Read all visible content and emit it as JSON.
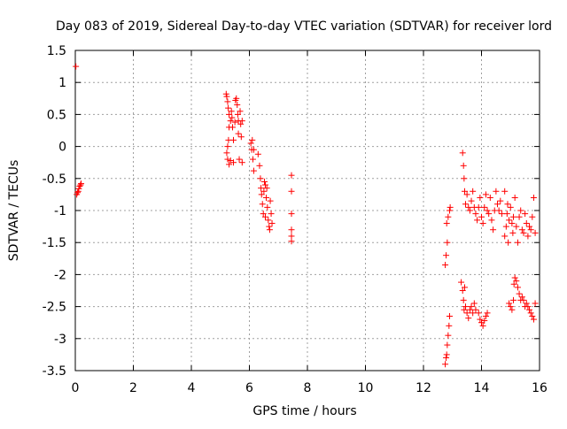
{
  "chart_data": {
    "type": "scatter",
    "title": "Day 083 of 2019, Sidereal Day-to-day VTEC variation (SDTVAR) for receiver lord",
    "xlabel": "GPS time / hours",
    "ylabel": "SDTVAR / TECUs",
    "xlim": [
      0,
      16
    ],
    "ylim": [
      -3.5,
      1.5
    ],
    "xticks": [
      0,
      2,
      4,
      6,
      8,
      10,
      12,
      14,
      16
    ],
    "yticks": [
      1.5,
      1,
      0.5,
      0,
      -0.5,
      -1,
      -1.5,
      -2,
      -2.5,
      -3,
      -3.5
    ],
    "xtick_labels": [
      "0",
      "2",
      "4",
      "6",
      "8",
      "10",
      "12",
      "14",
      "16"
    ],
    "ytick_labels": [
      "1.5",
      "1",
      "0.5",
      "0",
      "-0.5",
      "-1",
      "-1.5",
      "-2",
      "-2.5",
      "-3",
      "-3.5"
    ],
    "grid": true,
    "marker": "+",
    "series": [
      {
        "name": "SDTVAR",
        "color": "#ff0000",
        "points": [
          [
            0.02,
            1.25
          ],
          [
            0.05,
            -0.75
          ],
          [
            0.08,
            -0.72
          ],
          [
            0.1,
            -0.7
          ],
          [
            0.12,
            -0.66
          ],
          [
            0.15,
            -0.62
          ],
          [
            0.18,
            -0.6
          ],
          [
            0.2,
            -0.58
          ],
          [
            5.2,
            0.82
          ],
          [
            5.22,
            0.78
          ],
          [
            5.25,
            0.7
          ],
          [
            5.27,
            0.6
          ],
          [
            5.3,
            0.5
          ],
          [
            5.3,
            0.3
          ],
          [
            5.28,
            0.1
          ],
          [
            5.25,
            0.0
          ],
          [
            5.22,
            -0.1
          ],
          [
            5.25,
            -0.2
          ],
          [
            5.3,
            -0.28
          ],
          [
            5.35,
            -0.22
          ],
          [
            5.35,
            0.4
          ],
          [
            5.38,
            0.55
          ],
          [
            5.4,
            0.45
          ],
          [
            5.42,
            0.3
          ],
          [
            5.45,
            0.1
          ],
          [
            5.45,
            -0.25
          ],
          [
            5.5,
            0.38
          ],
          [
            5.52,
            0.72
          ],
          [
            5.55,
            0.75
          ],
          [
            5.58,
            0.65
          ],
          [
            5.6,
            0.5
          ],
          [
            5.62,
            0.4
          ],
          [
            5.62,
            0.2
          ],
          [
            5.65,
            -0.2
          ],
          [
            5.68,
            0.55
          ],
          [
            5.7,
            0.35
          ],
          [
            5.72,
            0.15
          ],
          [
            5.75,
            -0.25
          ],
          [
            5.75,
            0.4
          ],
          [
            6.05,
            0.05
          ],
          [
            6.08,
            -0.05
          ],
          [
            6.1,
            0.1
          ],
          [
            6.12,
            -0.2
          ],
          [
            6.15,
            -0.38
          ],
          [
            6.15,
            -0.05
          ],
          [
            6.3,
            -0.12
          ],
          [
            6.35,
            -0.3
          ],
          [
            6.38,
            -0.5
          ],
          [
            6.4,
            -0.65
          ],
          [
            6.42,
            -0.75
          ],
          [
            6.45,
            -0.9
          ],
          [
            6.48,
            -1.05
          ],
          [
            6.5,
            -0.7
          ],
          [
            6.52,
            -0.55
          ],
          [
            6.55,
            -0.6
          ],
          [
            6.55,
            -1.1
          ],
          [
            6.58,
            -0.8
          ],
          [
            6.6,
            -0.65
          ],
          [
            6.62,
            -0.95
          ],
          [
            6.65,
            -1.15
          ],
          [
            6.68,
            -1.25
          ],
          [
            6.7,
            -1.3
          ],
          [
            6.72,
            -0.85
          ],
          [
            6.75,
            -1.05
          ],
          [
            6.78,
            -1.2
          ],
          [
            7.45,
            -0.45
          ],
          [
            7.45,
            -0.7
          ],
          [
            7.45,
            -1.05
          ],
          [
            7.45,
            -1.3
          ],
          [
            7.45,
            -1.4
          ],
          [
            7.45,
            -1.48
          ],
          [
            12.75,
            -3.4
          ],
          [
            12.75,
            -1.85
          ],
          [
            12.78,
            -3.3
          ],
          [
            12.78,
            -1.7
          ],
          [
            12.8,
            -3.25
          ],
          [
            12.8,
            -1.2
          ],
          [
            12.82,
            -3.1
          ],
          [
            12.82,
            -1.5
          ],
          [
            12.85,
            -2.95
          ],
          [
            12.85,
            -1.1
          ],
          [
            12.88,
            -2.8
          ],
          [
            12.9,
            -2.65
          ],
          [
            12.9,
            -1.0
          ],
          [
            12.92,
            -0.95
          ],
          [
            13.3,
            -2.12
          ],
          [
            13.35,
            -2.25
          ],
          [
            13.38,
            -2.4
          ],
          [
            13.4,
            -2.55
          ],
          [
            13.42,
            -2.2
          ],
          [
            13.45,
            -2.5
          ],
          [
            13.5,
            -2.6
          ],
          [
            13.55,
            -2.68
          ],
          [
            13.6,
            -2.55
          ],
          [
            13.65,
            -2.5
          ],
          [
            13.7,
            -2.6
          ],
          [
            13.75,
            -2.45
          ],
          [
            13.8,
            -2.55
          ],
          [
            13.35,
            -0.1
          ],
          [
            13.38,
            -0.3
          ],
          [
            13.4,
            -0.5
          ],
          [
            13.42,
            -0.7
          ],
          [
            13.45,
            -0.9
          ],
          [
            13.5,
            -0.75
          ],
          [
            13.55,
            -0.95
          ],
          [
            13.6,
            -1.0
          ],
          [
            13.65,
            -0.85
          ],
          [
            13.7,
            -0.7
          ],
          [
            13.75,
            -0.95
          ],
          [
            13.8,
            -1.05
          ],
          [
            13.85,
            -1.15
          ],
          [
            13.9,
            -0.95
          ],
          [
            13.95,
            -0.8
          ],
          [
            14.0,
            -1.1
          ],
          [
            14.05,
            -1.2
          ],
          [
            14.1,
            -0.95
          ],
          [
            14.15,
            -0.75
          ],
          [
            14.2,
            -1.0
          ],
          [
            14.25,
            -1.05
          ],
          [
            14.3,
            -0.8
          ],
          [
            14.35,
            -1.15
          ],
          [
            14.4,
            -1.3
          ],
          [
            14.45,
            -1.0
          ],
          [
            14.5,
            -0.7
          ],
          [
            14.55,
            -0.9
          ],
          [
            14.6,
            -1.0
          ],
          [
            14.65,
            -0.85
          ],
          [
            14.7,
            -1.05
          ],
          [
            13.9,
            -2.6
          ],
          [
            13.95,
            -2.7
          ],
          [
            14.0,
            -2.75
          ],
          [
            14.05,
            -2.8
          ],
          [
            14.1,
            -2.72
          ],
          [
            14.15,
            -2.65
          ],
          [
            14.2,
            -2.6
          ],
          [
            14.8,
            -0.7
          ],
          [
            14.8,
            -1.4
          ],
          [
            14.85,
            -1.25
          ],
          [
            14.88,
            -1.05
          ],
          [
            14.9,
            -0.9
          ],
          [
            14.92,
            -1.5
          ],
          [
            14.95,
            -1.15
          ],
          [
            15.0,
            -0.95
          ],
          [
            15.05,
            -1.2
          ],
          [
            15.08,
            -1.35
          ],
          [
            15.1,
            -1.1
          ],
          [
            15.15,
            -0.8
          ],
          [
            15.2,
            -1.25
          ],
          [
            15.25,
            -1.5
          ],
          [
            15.3,
            -1.1
          ],
          [
            15.35,
            -1.0
          ],
          [
            15.4,
            -1.3
          ],
          [
            15.45,
            -1.35
          ],
          [
            15.5,
            -1.05
          ],
          [
            15.55,
            -1.2
          ],
          [
            15.6,
            -1.4
          ],
          [
            15.65,
            -1.25
          ],
          [
            15.7,
            -1.3
          ],
          [
            15.75,
            -1.1
          ],
          [
            15.8,
            -0.8
          ],
          [
            15.85,
            -1.35
          ],
          [
            14.95,
            -2.45
          ],
          [
            15.0,
            -2.5
          ],
          [
            15.05,
            -2.55
          ],
          [
            15.1,
            -2.4
          ],
          [
            15.12,
            -2.15
          ],
          [
            15.15,
            -2.05
          ],
          [
            15.2,
            -2.1
          ],
          [
            15.25,
            -2.2
          ],
          [
            15.3,
            -2.3
          ],
          [
            15.35,
            -2.4
          ],
          [
            15.4,
            -2.35
          ],
          [
            15.45,
            -2.4
          ],
          [
            15.5,
            -2.5
          ],
          [
            15.55,
            -2.45
          ],
          [
            15.6,
            -2.5
          ],
          [
            15.65,
            -2.55
          ],
          [
            15.7,
            -2.6
          ],
          [
            15.75,
            -2.65
          ],
          [
            15.8,
            -2.7
          ],
          [
            15.85,
            -2.45
          ]
        ]
      }
    ]
  }
}
